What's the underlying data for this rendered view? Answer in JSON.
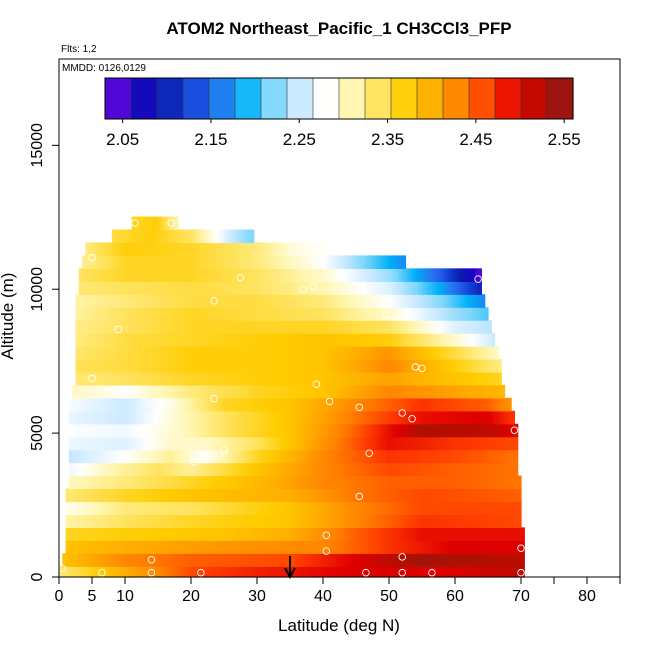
{
  "chart_data": {
    "type": "heatmap",
    "title": "ATOM2 Northeast_Pacific_1 CH3CCl3_PFP",
    "flights_note": "Flts: 1,2",
    "dates_note": "MMDD: 0126,0129",
    "xlabel": "Latitude (deg N)",
    "ylabel": "Altitude (m)",
    "xlim": [
      0,
      85
    ],
    "ylim": [
      0,
      18000
    ],
    "x_ticks": [
      0,
      5,
      10,
      20,
      30,
      40,
      50,
      60,
      70,
      80
    ],
    "x_tick_labels": [
      "0",
      "5",
      "10",
      "20",
      "30",
      "40",
      "50",
      "60",
      "70",
      "80"
    ],
    "x_minor_ticks": [
      75,
      85
    ],
    "y_ticks": [
      0,
      5000,
      10000,
      15000
    ],
    "y_tick_labels": [
      "0",
      "5000",
      "10000",
      "15000"
    ],
    "colorbar": {
      "min": 2.03,
      "max": 2.56,
      "tick_values": [
        2.05,
        2.15,
        2.25,
        2.35,
        2.45,
        2.55
      ],
      "tick_labels": [
        "2.05",
        "2.15",
        "2.25",
        "2.35",
        "2.45",
        "2.55"
      ],
      "colors": [
        "#7e0fe0",
        "#1a00c8",
        "#0a1ba8",
        "#1540d8",
        "#2a70f0",
        "#00b0f8",
        "#7ad6fb",
        "#c8e9ff",
        "#ffffff",
        "#fff6b0",
        "#ffe25a",
        "#ffcc00",
        "#ffaa00",
        "#ff8000",
        "#ff3a00",
        "#e00000",
        "#b01000",
        "#8b1a1a"
      ]
    },
    "marker": {
      "latitude": 35,
      "label": "arrow"
    },
    "rows": [
      {
        "altitude": 150,
        "lat_min": 0,
        "lat_max": 70.5,
        "values": [
          [
            0,
            2.33
          ],
          [
            10,
            2.4
          ],
          [
            20,
            2.46
          ],
          [
            30,
            2.48
          ],
          [
            45,
            2.5
          ],
          [
            60,
            2.5
          ],
          [
            70,
            2.52
          ]
        ]
      },
      {
        "altitude": 600,
        "lat_min": 0.5,
        "lat_max": 70.5,
        "values": [
          [
            0,
            2.38
          ],
          [
            10,
            2.43
          ],
          [
            20,
            2.45
          ],
          [
            35,
            2.46
          ],
          [
            45,
            2.5
          ],
          [
            55,
            2.54
          ],
          [
            70,
            2.52
          ]
        ]
      },
      {
        "altitude": 1050,
        "lat_min": 1,
        "lat_max": 70.5,
        "values": [
          [
            0,
            2.38
          ],
          [
            10,
            2.4
          ],
          [
            25,
            2.42
          ],
          [
            40,
            2.43
          ],
          [
            50,
            2.47
          ],
          [
            60,
            2.5
          ],
          [
            70,
            2.5
          ]
        ]
      },
      {
        "altitude": 1500,
        "lat_min": 1,
        "lat_max": 70.5,
        "values": [
          [
            0,
            2.36
          ],
          [
            10,
            2.37
          ],
          [
            25,
            2.38
          ],
          [
            35,
            2.4
          ],
          [
            45,
            2.45
          ],
          [
            55,
            2.49
          ],
          [
            70,
            2.49
          ]
        ]
      },
      {
        "altitude": 1950,
        "lat_min": 1,
        "lat_max": 70,
        "values": [
          [
            0,
            2.31
          ],
          [
            10,
            2.34
          ],
          [
            20,
            2.36
          ],
          [
            35,
            2.38
          ],
          [
            45,
            2.43
          ],
          [
            55,
            2.47
          ],
          [
            70,
            2.46
          ]
        ]
      },
      {
        "altitude": 2400,
        "lat_min": 1,
        "lat_max": 70,
        "values": [
          [
            0,
            2.28
          ],
          [
            10,
            2.33
          ],
          [
            20,
            2.34
          ],
          [
            35,
            2.38
          ],
          [
            45,
            2.43
          ],
          [
            55,
            2.46
          ],
          [
            70,
            2.46
          ]
        ]
      },
      {
        "altitude": 2850,
        "lat_min": 1,
        "lat_max": 70,
        "values": [
          [
            0,
            2.33
          ],
          [
            10,
            2.36
          ],
          [
            20,
            2.38
          ],
          [
            35,
            2.4
          ],
          [
            45,
            2.44
          ],
          [
            55,
            2.46
          ],
          [
            70,
            2.45
          ]
        ]
      },
      {
        "altitude": 3300,
        "lat_min": 1.5,
        "lat_max": 70,
        "values": [
          [
            0,
            2.3
          ],
          [
            10,
            2.33
          ],
          [
            20,
            2.36
          ],
          [
            30,
            2.39
          ],
          [
            40,
            2.43
          ],
          [
            50,
            2.45
          ],
          [
            60,
            2.45
          ],
          [
            70,
            2.44
          ]
        ]
      },
      {
        "altitude": 3750,
        "lat_min": 1.5,
        "lat_max": 69.5,
        "values": [
          [
            0,
            2.26
          ],
          [
            8,
            2.31
          ],
          [
            15,
            2.34
          ],
          [
            20,
            2.32
          ],
          [
            30,
            2.38
          ],
          [
            40,
            2.43
          ],
          [
            50,
            2.46
          ],
          [
            60,
            2.45
          ],
          [
            70,
            2.44
          ]
        ]
      },
      {
        "altitude": 4200,
        "lat_min": 1.5,
        "lat_max": 69.5,
        "values": [
          [
            0,
            2.24
          ],
          [
            10,
            2.28
          ],
          [
            17,
            2.32
          ],
          [
            22,
            2.28
          ],
          [
            30,
            2.36
          ],
          [
            40,
            2.43
          ],
          [
            50,
            2.47
          ],
          [
            60,
            2.46
          ],
          [
            70,
            2.44
          ]
        ]
      },
      {
        "altitude": 4650,
        "lat_min": 1.5,
        "lat_max": 69.5,
        "values": [
          [
            0,
            2.27
          ],
          [
            10,
            2.26
          ],
          [
            17,
            2.3
          ],
          [
            22,
            2.3
          ],
          [
            30,
            2.34
          ],
          [
            40,
            2.42
          ],
          [
            50,
            2.49
          ],
          [
            60,
            2.47
          ],
          [
            70,
            2.46
          ]
        ]
      },
      {
        "altitude": 5100,
        "lat_min": 1.5,
        "lat_max": 69.5,
        "values": [
          [
            0,
            2.28
          ],
          [
            10,
            2.27
          ],
          [
            18,
            2.3
          ],
          [
            25,
            2.34
          ],
          [
            35,
            2.38
          ],
          [
            45,
            2.45
          ],
          [
            55,
            2.53
          ],
          [
            65,
            2.52
          ],
          [
            70,
            2.49
          ]
        ]
      },
      {
        "altitude": 5550,
        "lat_min": 1.5,
        "lat_max": 69,
        "values": [
          [
            0,
            2.27
          ],
          [
            10,
            2.25
          ],
          [
            18,
            2.3
          ],
          [
            25,
            2.34
          ],
          [
            35,
            2.38
          ],
          [
            45,
            2.44
          ],
          [
            55,
            2.49
          ],
          [
            65,
            2.5
          ],
          [
            70,
            2.46
          ]
        ]
      },
      {
        "altitude": 6000,
        "lat_min": 1.5,
        "lat_max": 68.5,
        "values": [
          [
            0,
            2.28
          ],
          [
            10,
            2.25
          ],
          [
            17,
            2.29
          ],
          [
            25,
            2.36
          ],
          [
            35,
            2.38
          ],
          [
            45,
            2.43
          ],
          [
            55,
            2.47
          ],
          [
            65,
            2.45
          ],
          [
            70,
            2.41
          ]
        ]
      },
      {
        "altitude": 6450,
        "lat_min": 2,
        "lat_max": 67.5,
        "values": [
          [
            0,
            2.31
          ],
          [
            10,
            2.28
          ],
          [
            20,
            2.33
          ],
          [
            30,
            2.36
          ],
          [
            40,
            2.38
          ],
          [
            50,
            2.43
          ],
          [
            60,
            2.41
          ],
          [
            68,
            2.39
          ]
        ]
      },
      {
        "altitude": 6900,
        "lat_min": 2.5,
        "lat_max": 67,
        "values": [
          [
            0,
            2.33
          ],
          [
            10,
            2.34
          ],
          [
            20,
            2.36
          ],
          [
            30,
            2.37
          ],
          [
            40,
            2.38
          ],
          [
            50,
            2.41
          ],
          [
            60,
            2.38
          ],
          [
            68,
            2.36
          ]
        ]
      },
      {
        "altitude": 7350,
        "lat_min": 2.5,
        "lat_max": 67,
        "values": [
          [
            0,
            2.34
          ],
          [
            10,
            2.35
          ],
          [
            20,
            2.37
          ],
          [
            30,
            2.37
          ],
          [
            40,
            2.38
          ],
          [
            50,
            2.43
          ],
          [
            60,
            2.37
          ],
          [
            68,
            2.32
          ]
        ]
      },
      {
        "altitude": 7800,
        "lat_min": 2.5,
        "lat_max": 66.5,
        "values": [
          [
            0,
            2.33
          ],
          [
            10,
            2.35
          ],
          [
            20,
            2.37
          ],
          [
            30,
            2.37
          ],
          [
            40,
            2.38
          ],
          [
            50,
            2.42
          ],
          [
            60,
            2.35
          ],
          [
            67,
            2.3
          ]
        ]
      },
      {
        "altitude": 8250,
        "lat_min": 2.5,
        "lat_max": 66,
        "values": [
          [
            0,
            2.32
          ],
          [
            10,
            2.35
          ],
          [
            20,
            2.36
          ],
          [
            30,
            2.37
          ],
          [
            40,
            2.38
          ],
          [
            50,
            2.37
          ],
          [
            60,
            2.3
          ],
          [
            66,
            2.25
          ]
        ]
      },
      {
        "altitude": 8700,
        "lat_min": 2.5,
        "lat_max": 65.5,
        "values": [
          [
            0,
            2.32
          ],
          [
            10,
            2.34
          ],
          [
            20,
            2.36
          ],
          [
            30,
            2.36
          ],
          [
            40,
            2.36
          ],
          [
            50,
            2.34
          ],
          [
            60,
            2.26
          ],
          [
            66,
            2.24
          ]
        ]
      },
      {
        "altitude": 9150,
        "lat_min": 2.5,
        "lat_max": 65,
        "values": [
          [
            0,
            2.31
          ],
          [
            10,
            2.34
          ],
          [
            20,
            2.36
          ],
          [
            30,
            2.35
          ],
          [
            40,
            2.34
          ],
          [
            50,
            2.3
          ],
          [
            60,
            2.23
          ],
          [
            66,
            2.2
          ]
        ]
      },
      {
        "altitude": 9600,
        "lat_min": 2.5,
        "lat_max": 64.5,
        "values": [
          [
            0,
            2.31
          ],
          [
            10,
            2.33
          ],
          [
            20,
            2.35
          ],
          [
            30,
            2.35
          ],
          [
            40,
            2.33
          ],
          [
            50,
            2.28
          ],
          [
            58,
            2.22
          ],
          [
            65,
            2.16
          ]
        ]
      },
      {
        "altitude": 10050,
        "lat_min": 3,
        "lat_max": 64,
        "values": [
          [
            0,
            2.33
          ],
          [
            10,
            2.34
          ],
          [
            20,
            2.35
          ],
          [
            30,
            2.34
          ],
          [
            40,
            2.31
          ],
          [
            50,
            2.26
          ],
          [
            58,
            2.18
          ],
          [
            64,
            2.1
          ]
        ]
      },
      {
        "altitude": 10500,
        "lat_min": 3,
        "lat_max": 64,
        "values": [
          [
            0,
            2.33
          ],
          [
            10,
            2.36
          ],
          [
            20,
            2.36
          ],
          [
            30,
            2.34
          ],
          [
            40,
            2.3
          ],
          [
            50,
            2.23
          ],
          [
            58,
            2.14
          ],
          [
            64,
            2.04
          ]
        ]
      },
      {
        "altitude": 10950,
        "lat_min": 3.5,
        "lat_max": 52.5,
        "values": [
          [
            0,
            2.3
          ],
          [
            10,
            2.36
          ],
          [
            20,
            2.36
          ],
          [
            30,
            2.33
          ],
          [
            40,
            2.28
          ],
          [
            46,
            2.22
          ],
          [
            52,
            2.17
          ]
        ]
      },
      {
        "altitude": 11400,
        "lat_min": 4,
        "lat_max": 41,
        "values": [
          [
            0,
            2.3
          ],
          [
            10,
            2.37
          ],
          [
            20,
            2.36
          ],
          [
            30,
            2.33
          ],
          [
            36,
            2.29
          ],
          [
            41,
            2.28
          ]
        ]
      },
      {
        "altitude": 11850,
        "lat_min": 8,
        "lat_max": 29.5,
        "values": [
          [
            8,
            2.35
          ],
          [
            14,
            2.37
          ],
          [
            20,
            2.34
          ],
          [
            26,
            2.25
          ],
          [
            29,
            2.22
          ]
        ]
      },
      {
        "altitude": 12300,
        "lat_min": 11,
        "lat_max": 18,
        "values": [
          [
            11,
            2.36
          ],
          [
            15,
            2.37
          ],
          [
            18,
            2.31
          ]
        ]
      }
    ],
    "points": [
      {
        "lat": 0.5,
        "alt": 300
      },
      {
        "lat": 6.5,
        "alt": 150
      },
      {
        "lat": 14,
        "alt": 150
      },
      {
        "lat": 14,
        "alt": 600
      },
      {
        "lat": 21.5,
        "alt": 150
      },
      {
        "lat": 40.5,
        "alt": 900
      },
      {
        "lat": 40.5,
        "alt": 1450
      },
      {
        "lat": 46.5,
        "alt": 150
      },
      {
        "lat": 52,
        "alt": 150
      },
      {
        "lat": 52,
        "alt": 700
      },
      {
        "lat": 56.5,
        "alt": 150
      },
      {
        "lat": 70,
        "alt": 150
      },
      {
        "lat": 70,
        "alt": 1000
      },
      {
        "lat": 45.5,
        "alt": 2800
      },
      {
        "lat": 47,
        "alt": 4300
      },
      {
        "lat": 20.5,
        "alt": 4000
      },
      {
        "lat": 25,
        "alt": 4400
      },
      {
        "lat": 1.5,
        "alt": 4750
      },
      {
        "lat": 53.5,
        "alt": 5500
      },
      {
        "lat": 52,
        "alt": 5700
      },
      {
        "lat": 69,
        "alt": 5100
      },
      {
        "lat": 45.5,
        "alt": 5900
      },
      {
        "lat": 13,
        "alt": 6050
      },
      {
        "lat": 23.5,
        "alt": 6200
      },
      {
        "lat": 41,
        "alt": 6100
      },
      {
        "lat": 39,
        "alt": 6700
      },
      {
        "lat": 5,
        "alt": 6900
      },
      {
        "lat": 54,
        "alt": 7300
      },
      {
        "lat": 55,
        "alt": 7250
      },
      {
        "lat": 9,
        "alt": 8600
      },
      {
        "lat": 49.5,
        "alt": 9100
      },
      {
        "lat": 23.5,
        "alt": 9600
      },
      {
        "lat": 37,
        "alt": 10000
      },
      {
        "lat": 38.5,
        "alt": 10100
      },
      {
        "lat": 27.5,
        "alt": 10400
      },
      {
        "lat": 42.5,
        "alt": 10450
      },
      {
        "lat": 63.5,
        "alt": 10350
      },
      {
        "lat": 5,
        "alt": 11100
      },
      {
        "lat": 17,
        "alt": 12300
      },
      {
        "lat": 11.5,
        "alt": 12300
      }
    ]
  }
}
